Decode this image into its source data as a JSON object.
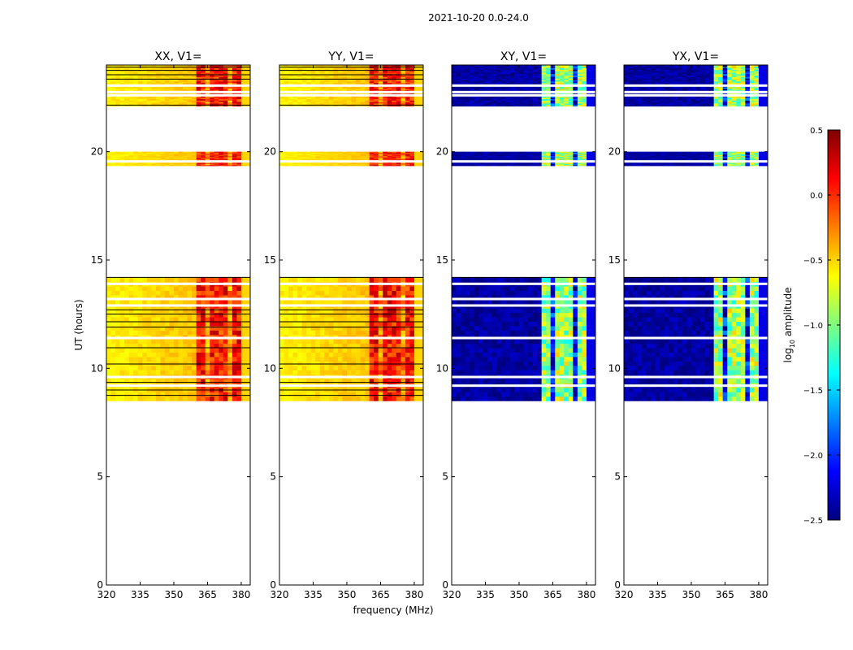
{
  "figure": {
    "suptitle": "2021-10-20 0.0-24.0",
    "xlabel": "frequency (MHz)",
    "ylabel": "UT (hours)"
  },
  "colorbar": {
    "label": "log",
    "label_sub": "10",
    "label_rest": " amplitude",
    "min": -2.5,
    "max": 0.5,
    "ticks": [
      0.5,
      0.0,
      -0.5,
      -1.0,
      -1.5,
      -2.0,
      -2.5
    ],
    "tick_labels": [
      "0.5",
      "0.0",
      "−0.5",
      "−1.0",
      "−1.5",
      "−2.0",
      "−2.5"
    ],
    "colormap": "jet",
    "colors": [
      "#00007f",
      "#0000ff",
      "#007fff",
      "#00ffff",
      "#7fff7f",
      "#ffff00",
      "#ff7f00",
      "#ff0000",
      "#7f0000"
    ]
  },
  "chart_data": {
    "type": "heatmap",
    "xlim": [
      320,
      384
    ],
    "ylim": [
      0,
      24
    ],
    "xticks": [
      320,
      335,
      350,
      365,
      380
    ],
    "xtick_labels": [
      "320",
      "335",
      "350",
      "365",
      "380"
    ],
    "yticks": [
      0,
      5,
      10,
      15,
      20
    ],
    "ytick_labels": [
      "0",
      "5",
      "10",
      "15",
      "20"
    ],
    "observed_ut_bands": [
      [
        8.5,
        14.2
      ],
      [
        19.35,
        20.0
      ],
      [
        22.1,
        24.0
      ]
    ],
    "strong_frequency_band_mhz": [
      360,
      380
    ],
    "subplots": [
      {
        "title": "XX, V1=",
        "pol": "XX",
        "background_log_amp": -0.6,
        "band_log_amp": 0.0
      },
      {
        "title": "YY, V1=",
        "pol": "YY",
        "background_log_amp": -0.6,
        "band_log_amp": 0.0
      },
      {
        "title": "XY, V1=",
        "pol": "XY",
        "background_log_amp": -2.4,
        "band_log_amp": -1.0
      },
      {
        "title": "YX, V1=",
        "pol": "YX",
        "background_log_amp": -2.4,
        "band_log_amp": -1.0
      }
    ]
  }
}
